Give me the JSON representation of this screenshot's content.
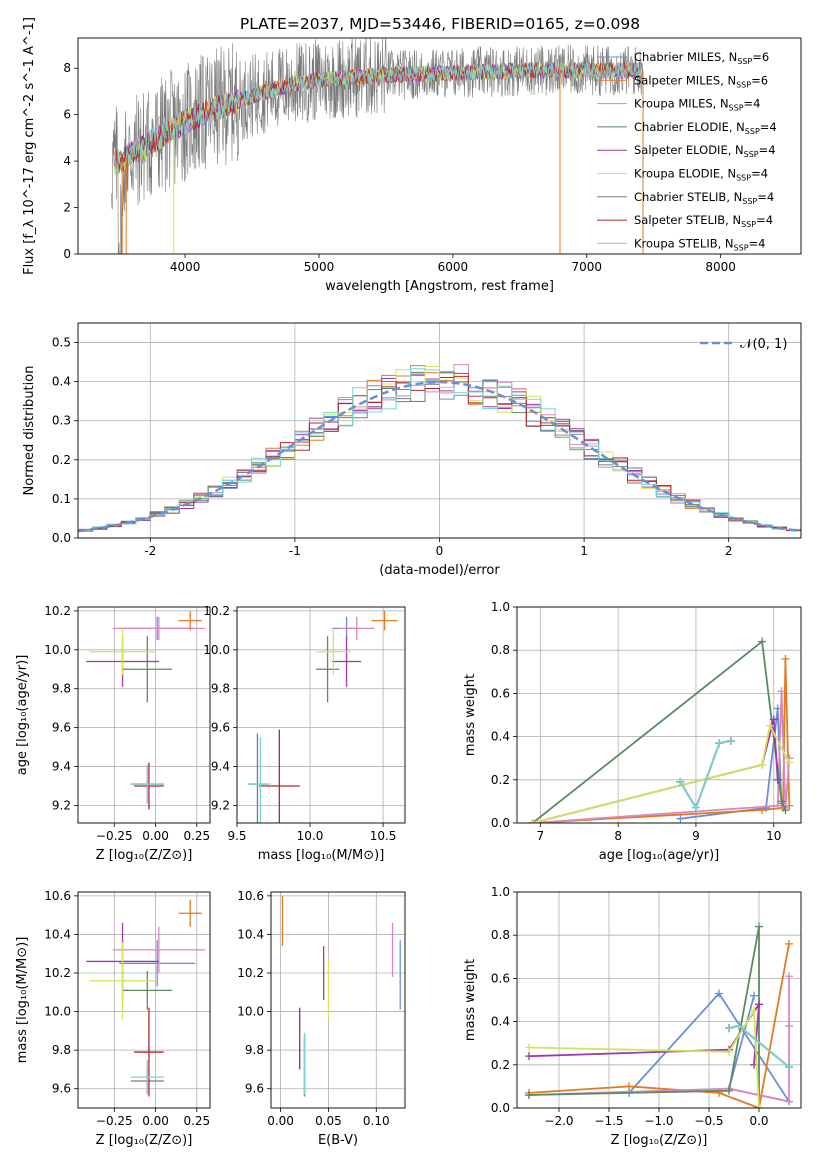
{
  "page_title": "PLATE=2037, MJD=53446, FIBERID=0165, z=0.098",
  "colors": [
    "#6a8fd9",
    "#e07b22",
    "#d888bd",
    "#5d8a63",
    "#9f3aa6",
    "#d4e35e",
    "#7a7a7a",
    "#b0282c",
    "#79d6d6"
  ],
  "chart_data": [
    {
      "id": "spectrum",
      "type": "line",
      "title": "PLATE=2037, MJD=53446, FIBERID=0165, z=0.098",
      "xlabel": "wavelength [Angstrom, rest frame]",
      "ylabel": "Flux [f_λ 10^-17 erg cm^-2 s^-1 A^-1]",
      "xlim": [
        3200,
        8600
      ],
      "ylim": [
        0,
        9.3
      ],
      "xticks": [
        4000,
        5000,
        6000,
        7000,
        8000
      ],
      "yticks": [
        0,
        2,
        4,
        6,
        8
      ],
      "legend_position": "top-right",
      "series": [
        {
          "name": "Chabrier MILES, N_SSP=6"
        },
        {
          "name": "Salpeter MILES, N_SSP=6"
        },
        {
          "name": "Kroupa MILES, N_SSP=4"
        },
        {
          "name": "Chabrier ELODIE, N_SSP=4"
        },
        {
          "name": "Salpeter ELODIE, N_SSP=4"
        },
        {
          "name": "Kroupa ELODIE, N_SSP=4"
        },
        {
          "name": "Chabrier STELIB, N_SSP=4"
        },
        {
          "name": "Salpeter STELIB, N_SSP=4"
        },
        {
          "name": "Kroupa STELIB, N_SSP=4"
        }
      ],
      "continuum": {
        "x": [
          3450,
          3600,
          3800,
          4000,
          4200,
          4400,
          4600,
          4800,
          5000,
          5200,
          5500,
          6000,
          6500,
          7000,
          7420
        ],
        "y": [
          3.8,
          4.3,
          5.0,
          5.7,
          6.2,
          6.6,
          7.0,
          7.3,
          7.5,
          7.6,
          7.7,
          7.8,
          7.9,
          7.9,
          7.9
        ]
      }
    },
    {
      "id": "residual-hist",
      "type": "step",
      "xlabel": "(data-model)/error",
      "ylabel": "Normed distribution",
      "xlim": [
        -2.5,
        2.5
      ],
      "ylim": [
        0,
        0.55
      ],
      "xticks": [
        -2,
        -1,
        0,
        1,
        2
      ],
      "yticks": [
        0.0,
        0.1,
        0.2,
        0.3,
        0.4,
        0.5
      ],
      "legend": "𝒩(0, 1)",
      "legend_position": "top-right",
      "reference": {
        "name": "𝒩(0, 1)",
        "mean": 0,
        "sigma": 1
      },
      "bin_width": 0.1
    },
    {
      "id": "age-vs-Z",
      "type": "errorbar",
      "xlabel": "Z [log10(Z/Z⊙)]",
      "ylabel": "age [log10(age/yr)]",
      "xlim": [
        -0.47,
        0.33
      ],
      "ylim": [
        9.11,
        10.22
      ],
      "xticks": [
        -0.25,
        0.0,
        0.25
      ],
      "yticks": [
        9.2,
        9.4,
        9.6,
        9.8,
        10.0,
        10.2
      ],
      "points": [
        {
          "x": 0.01,
          "xerr": 0.23,
          "y": 10.11,
          "yerr": 0.06
        },
        {
          "x": 0.21,
          "xerr": 0.07,
          "y": 10.15,
          "yerr": 0.05
        },
        {
          "x": 0.02,
          "xerr": 0.28,
          "y": 10.11,
          "yerr": 0.06
        },
        {
          "x": -0.05,
          "xerr": 0.15,
          "y": 9.9,
          "yerr": 0.17
        },
        {
          "x": -0.2,
          "xerr": 0.22,
          "y": 9.94,
          "yerr": 0.13
        },
        {
          "x": -0.2,
          "xerr": 0.2,
          "y": 9.99,
          "yerr": 0.12
        },
        {
          "x": -0.05,
          "xerr": 0.1,
          "y": 9.31,
          "yerr": 0.1
        },
        {
          "x": -0.04,
          "xerr": 0.09,
          "y": 9.3,
          "yerr": 0.12
        },
        {
          "x": -0.05,
          "xerr": 0.1,
          "y": 9.31,
          "yerr": 0.1
        }
      ]
    },
    {
      "id": "age-vs-mass",
      "type": "errorbar",
      "xlabel": "mass [log10(M/M⊙)]",
      "ylabel": "",
      "xlim": [
        9.5,
        10.65
      ],
      "ylim": [
        9.11,
        10.22
      ],
      "xticks": [
        9.5,
        10.0,
        10.5
      ],
      "yticks": [
        9.2,
        9.4,
        9.6,
        9.8,
        10.0,
        10.2
      ],
      "points": [
        {
          "x": 10.25,
          "xerr": 0.1,
          "y": 10.11,
          "yerr": 0.06
        },
        {
          "x": 10.51,
          "xerr": 0.09,
          "y": 10.15,
          "yerr": 0.05
        },
        {
          "x": 10.32,
          "xerr": 0.12,
          "y": 10.11,
          "yerr": 0.06
        },
        {
          "x": 10.12,
          "xerr": 0.08,
          "y": 9.9,
          "yerr": 0.17
        },
        {
          "x": 10.25,
          "xerr": 0.1,
          "y": 9.94,
          "yerr": 0.13
        },
        {
          "x": 10.16,
          "xerr": 0.12,
          "y": 9.99,
          "yerr": 0.12
        },
        {
          "x": 9.64,
          "xerr": 0.06,
          "y": 9.31,
          "yerr": 0.26
        },
        {
          "x": 9.79,
          "xerr": 0.14,
          "y": 9.3,
          "yerr": 0.29
        },
        {
          "x": 9.66,
          "xerr": 0.07,
          "y": 9.31,
          "yerr": 0.24
        }
      ]
    },
    {
      "id": "weight-vs-age",
      "type": "line",
      "xlabel": "age [log10(age/yr)]",
      "ylabel": "mass weight",
      "xlim": [
        6.7,
        10.35
      ],
      "ylim": [
        0.0,
        1.0
      ],
      "xticks": [
        7,
        8,
        9,
        10
      ],
      "yticks": [
        0.0,
        0.2,
        0.4,
        0.6,
        0.8,
        1.0
      ],
      "series": [
        {
          "x": [
            8.8,
            9.9,
            10.05,
            10.1,
            10.15
          ],
          "y": [
            0.02,
            0.07,
            0.53,
            0.09,
            0.07
          ]
        },
        {
          "x": [
            6.9,
            9.85,
            10.12,
            10.15,
            10.2
          ],
          "y": [
            0.0,
            0.06,
            0.07,
            0.76,
            0.08
          ]
        },
        {
          "x": [
            6.9,
            10.05,
            10.1,
            10.15,
            10.2
          ],
          "y": [
            0.0,
            0.08,
            0.61,
            0.07,
            0.3
          ]
        },
        {
          "x": [
            6.9,
            9.85,
            10.1,
            10.15
          ],
          "y": [
            0.0,
            0.84,
            0.1,
            0.06
          ]
        },
        {
          "x": [
            6.9,
            9.85,
            10.0,
            10.05
          ],
          "y": [
            0.0,
            0.27,
            0.48,
            0.2
          ]
        },
        {
          "x": [
            6.9,
            9.85,
            9.95,
            10.2
          ],
          "y": [
            0.0,
            0.27,
            0.45,
            0.28
          ]
        },
        {
          "x": [
            8.8,
            9.0,
            9.3,
            9.45
          ],
          "y": [
            0.19,
            0.07,
            0.37,
            0.38
          ]
        },
        {
          "x": [
            8.8,
            9.0,
            9.3,
            9.45
          ],
          "y": [
            0.19,
            0.07,
            0.37,
            0.38
          ]
        },
        {
          "x": [
            8.8,
            9.0,
            9.3,
            9.45
          ],
          "y": [
            0.19,
            0.07,
            0.37,
            0.38
          ]
        }
      ]
    },
    {
      "id": "mass-vs-Z",
      "type": "errorbar",
      "xlabel": "Z [log10(Z/Z⊙)]",
      "ylabel": "mass [log10(M/M⊙)]",
      "xlim": [
        -0.47,
        0.33
      ],
      "ylim": [
        9.5,
        10.62
      ],
      "xticks": [
        -0.25,
        0.0,
        0.25
      ],
      "yticks": [
        9.6,
        9.8,
        10.0,
        10.2,
        10.4,
        10.6
      ],
      "points": [
        {
          "x": 0.01,
          "xerr": 0.23,
          "y": 10.25,
          "yerr": 0.12
        },
        {
          "x": 0.21,
          "xerr": 0.07,
          "y": 10.51,
          "yerr": 0.07
        },
        {
          "x": 0.02,
          "xerr": 0.28,
          "y": 10.32,
          "yerr": 0.12
        },
        {
          "x": -0.05,
          "xerr": 0.15,
          "y": 10.11,
          "yerr": 0.1
        },
        {
          "x": -0.2,
          "xerr": 0.22,
          "y": 10.26,
          "yerr": 0.2
        },
        {
          "x": -0.2,
          "xerr": 0.2,
          "y": 10.16,
          "yerr": 0.2
        },
        {
          "x": -0.05,
          "xerr": 0.1,
          "y": 9.64,
          "yerr": 0.07
        },
        {
          "x": -0.04,
          "xerr": 0.09,
          "y": 9.79,
          "yerr": 0.23
        },
        {
          "x": -0.05,
          "xerr": 0.1,
          "y": 9.66,
          "yerr": 0.09
        }
      ]
    },
    {
      "id": "mass-vs-ebv",
      "type": "errorbar",
      "xlabel": "E(B-V)",
      "ylabel": "",
      "xlim": [
        -0.01,
        0.13
      ],
      "ylim": [
        9.5,
        10.62
      ],
      "xticks": [
        0.0,
        0.05,
        0.1
      ],
      "yticks": [
        9.6,
        9.8,
        10.0,
        10.2,
        10.4,
        10.6
      ],
      "points": [
        {
          "x": 0.125,
          "y": 10.19,
          "yerr": 0.18
        },
        {
          "x": 0.002,
          "y": 10.47,
          "yerr": 0.13
        },
        {
          "x": 0.117,
          "y": 10.32,
          "yerr": 0.14
        },
        {
          "x": 0.025,
          "y": 9.72,
          "yerr": 0.16
        },
        {
          "x": 0.045,
          "y": 10.2,
          "yerr": 0.14
        },
        {
          "x": 0.05,
          "y": 10.12,
          "yerr": 0.16
        },
        {
          "x": 0.025,
          "y": 9.71,
          "yerr": 0.15
        },
        {
          "x": 0.02,
          "y": 9.86,
          "yerr": 0.16
        },
        {
          "x": 0.025,
          "y": 9.73,
          "yerr": 0.16
        }
      ]
    },
    {
      "id": "weight-vs-Z",
      "type": "line",
      "xlabel": "Z [log10(Z/Z⊙)]",
      "ylabel": "mass weight",
      "xlim": [
        -2.42,
        0.42
      ],
      "ylim": [
        0.0,
        1.0
      ],
      "xticks": [
        -2.0,
        -1.5,
        -1.0,
        -0.5,
        0.0
      ],
      "yticks": [
        0.0,
        0.2,
        0.4,
        0.6,
        0.8,
        1.0
      ],
      "series": [
        {
          "x": [
            -1.3,
            -0.4,
            0.3,
            -0.3,
            -0.05
          ],
          "y": [
            0.07,
            0.53,
            0.03,
            0.09,
            0.52
          ]
        },
        {
          "x": [
            -2.3,
            -1.3,
            -0.4,
            0.0,
            0.3
          ],
          "y": [
            0.07,
            0.1,
            0.07,
            0.0,
            0.76
          ]
        },
        {
          "x": [
            -2.3,
            -0.3,
            0.3,
            0.3,
            0.3
          ],
          "y": [
            0.06,
            0.09,
            0.03,
            0.61,
            0.38
          ]
        },
        {
          "x": [
            -2.3,
            -0.3,
            0.0,
            0.0
          ],
          "y": [
            0.06,
            0.08,
            0.84,
            0.0
          ]
        },
        {
          "x": [
            -2.3,
            -0.3,
            0.0,
            -0.05
          ],
          "y": [
            0.24,
            0.27,
            0.48,
            0.2
          ]
        },
        {
          "x": [
            -2.3,
            -0.3,
            -0.05,
            0.0
          ],
          "y": [
            0.28,
            0.26,
            0.45,
            0.0
          ]
        },
        {
          "x": [
            -0.3,
            -0.2,
            0.3
          ],
          "y": [
            0.37,
            0.38,
            0.19
          ]
        },
        {
          "x": [
            -0.3,
            -0.2,
            0.3
          ],
          "y": [
            0.37,
            0.38,
            0.19
          ]
        },
        {
          "x": [
            -0.3,
            -0.2,
            0.3
          ],
          "y": [
            0.37,
            0.38,
            0.19
          ]
        }
      ]
    }
  ]
}
